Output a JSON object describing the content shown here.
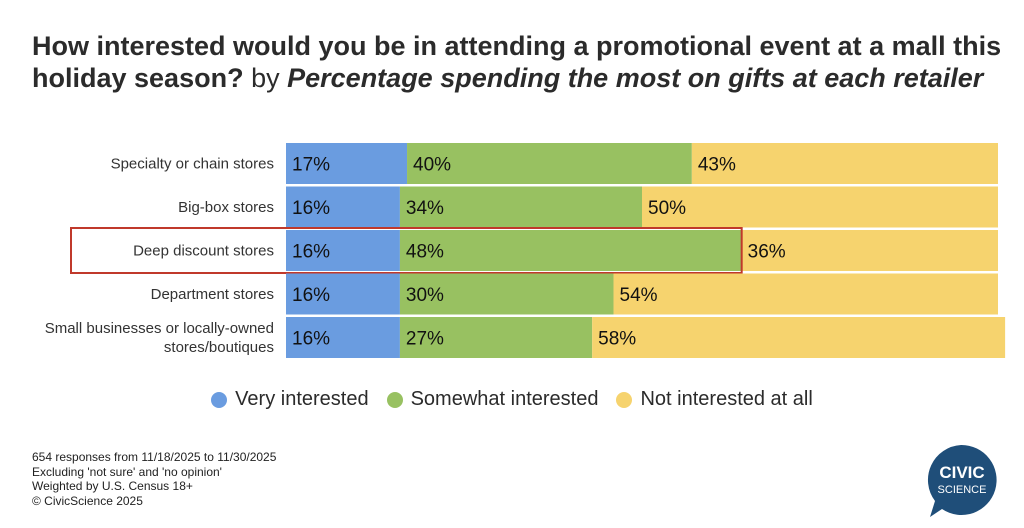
{
  "title": {
    "main": "How interested would you be in attending a promotional event at a mall this holiday season?",
    "by": "by",
    "qualifier": "Percentage spending the most on gifts at each retailer"
  },
  "chart_data": {
    "type": "bar",
    "orientation": "horizontal",
    "stacked": true,
    "categories": [
      "Specialty or chain stores",
      "Big-box stores",
      "Deep discount stores",
      "Department stores",
      "Small businesses or locally-owned stores/boutiques"
    ],
    "category_lines": [
      [
        "Specialty or chain stores"
      ],
      [
        "Big-box stores"
      ],
      [
        "Deep discount stores"
      ],
      [
        "Department stores"
      ],
      [
        "Small businesses or locally-owned",
        "stores/boutiques"
      ]
    ],
    "series": [
      {
        "name": "Very interested",
        "color": "#6a9ce0",
        "values": [
          17,
          16,
          16,
          16,
          16
        ]
      },
      {
        "name": "Somewhat interested",
        "color": "#98c161",
        "values": [
          40,
          34,
          48,
          30,
          27
        ]
      },
      {
        "name": "Not interested at all",
        "color": "#f6d36e",
        "values": [
          43,
          50,
          36,
          54,
          58
        ]
      }
    ],
    "value_suffix": "%",
    "xlim": [
      0,
      100
    ],
    "highlighted_category": "Deep discount stores",
    "highlight_color": "#c0392b",
    "legend_position": "bottom",
    "grid": false
  },
  "legend": {
    "items": [
      {
        "label": "Very interested",
        "color": "#6a9ce0"
      },
      {
        "label": "Somewhat interested",
        "color": "#98c161"
      },
      {
        "label": "Not interested at all",
        "color": "#f6d36e"
      }
    ]
  },
  "footnotes": [
    "654 responses from 11/18/2025 to 11/30/2025",
    "Excluding 'not sure' and 'no opinion'",
    "Weighted by U.S. Census 18+",
    "© CivicScience 2025"
  ],
  "logo": {
    "line1": "CIVIC",
    "line2": "SCIENCE",
    "color": "#1f4e79"
  }
}
